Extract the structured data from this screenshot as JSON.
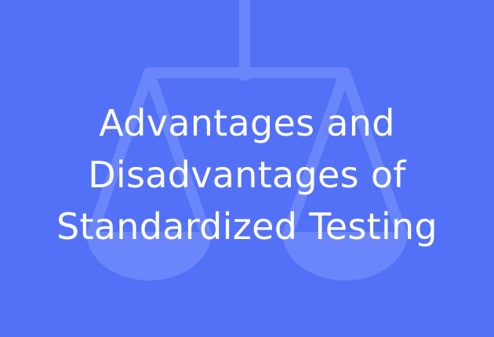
{
  "colors": {
    "background": "#5371f7",
    "scale": "#6b86fb",
    "text": "#ffffff"
  },
  "icons": {
    "background_graphic": "balance-scale-icon"
  },
  "title": {
    "line1": "Advantages and",
    "line2": "Disadvantages of",
    "line3": "Standardized Testing"
  }
}
